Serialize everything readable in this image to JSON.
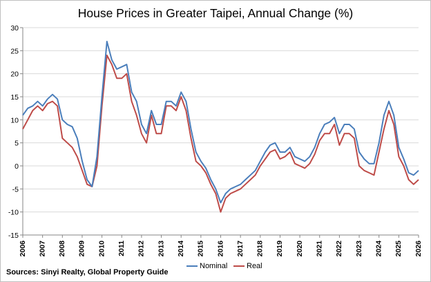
{
  "chart_data": {
    "type": "line",
    "title": "House Prices in Greater Taipei, Annual Change (%)",
    "xlabel": "",
    "ylabel": "",
    "ylim": [
      -15,
      30
    ],
    "yticks": [
      30,
      25,
      20,
      15,
      10,
      5,
      0,
      -5,
      -10,
      -15
    ],
    "xlim": [
      2006,
      2026
    ],
    "xticks": [
      "2006",
      "2007",
      "2008",
      "2009",
      "2010",
      "2011",
      "2012",
      "2013",
      "2014",
      "2015",
      "2016",
      "2017",
      "2018",
      "2019",
      "2020",
      "2021",
      "2022",
      "2023",
      "2024",
      "2025",
      "2026"
    ],
    "grid": true,
    "legend_position": "bottom",
    "x": [
      2006.0,
      2006.25,
      2006.5,
      2006.75,
      2007.0,
      2007.25,
      2007.5,
      2007.75,
      2008.0,
      2008.25,
      2008.5,
      2008.75,
      2009.0,
      2009.25,
      2009.5,
      2009.75,
      2010.0,
      2010.25,
      2010.5,
      2010.75,
      2011.0,
      2011.25,
      2011.5,
      2011.75,
      2012.0,
      2012.25,
      2012.5,
      2012.75,
      2013.0,
      2013.25,
      2013.5,
      2013.75,
      2014.0,
      2014.25,
      2014.5,
      2014.75,
      2015.0,
      2015.25,
      2015.5,
      2015.75,
      2016.0,
      2016.25,
      2016.5,
      2016.75,
      2017.0,
      2017.25,
      2017.5,
      2017.75,
      2018.0,
      2018.25,
      2018.5,
      2018.75,
      2019.0,
      2019.25,
      2019.5,
      2019.75,
      2020.0,
      2020.25,
      2020.5,
      2020.75,
      2021.0,
      2021.25,
      2021.5,
      2021.75,
      2022.0,
      2022.25,
      2022.5,
      2022.75,
      2023.0,
      2023.25,
      2023.5,
      2023.75,
      2024.0,
      2024.25,
      2024.5,
      2024.75,
      2025.0,
      2025.25,
      2025.5,
      2025.75,
      2026.0
    ],
    "series": [
      {
        "name": "Nominal",
        "color": "#4a7ebb",
        "values": [
          11,
          12.5,
          13,
          14,
          13,
          14.5,
          15.5,
          14.5,
          10,
          9,
          8.5,
          6,
          1,
          -3,
          -4.5,
          2,
          15,
          27,
          23,
          21,
          21.5,
          22,
          16,
          14,
          9,
          7,
          12,
          9,
          9,
          14,
          14,
          13,
          16,
          14,
          8,
          3,
          1,
          -0.5,
          -3,
          -5,
          -8,
          -6,
          -5,
          -4.5,
          -4,
          -3,
          -2,
          -1,
          1,
          3,
          4.5,
          5,
          3,
          3,
          4,
          2,
          1.5,
          1,
          2,
          4,
          7,
          9,
          9.5,
          10.5,
          7,
          9,
          9,
          8,
          3,
          1.5,
          0.5,
          0.5,
          5,
          11,
          14,
          11,
          4,
          1.5,
          -1.5,
          -2,
          -1
        ]
      },
      {
        "name": "Real",
        "color": "#be4b48",
        "values": [
          8,
          10,
          12,
          13,
          12,
          13.5,
          14,
          13,
          6,
          5,
          4,
          2,
          -1,
          -4,
          -4.5,
          0,
          13,
          24,
          22,
          19,
          19,
          20,
          14,
          11,
          7,
          5,
          11,
          7,
          7,
          13,
          13,
          12,
          15,
          12,
          6,
          1,
          0,
          -1.5,
          -4,
          -6,
          -10,
          -7,
          -6,
          -5.5,
          -5,
          -4,
          -3,
          -2,
          0,
          1.5,
          3,
          3.5,
          1.5,
          2,
          3,
          0.5,
          0,
          -0.5,
          0.5,
          2.5,
          5.5,
          7,
          7,
          9,
          4.5,
          7,
          7,
          6,
          0,
          -1,
          -1.5,
          -2,
          3,
          8,
          12,
          9,
          2,
          0,
          -3,
          -4,
          -3
        ]
      }
    ]
  },
  "source_note": "Sources: Sinyi Realty, Global Property Guide",
  "colors": {
    "grid": "#d9d9d9",
    "axis": "#868686"
  }
}
